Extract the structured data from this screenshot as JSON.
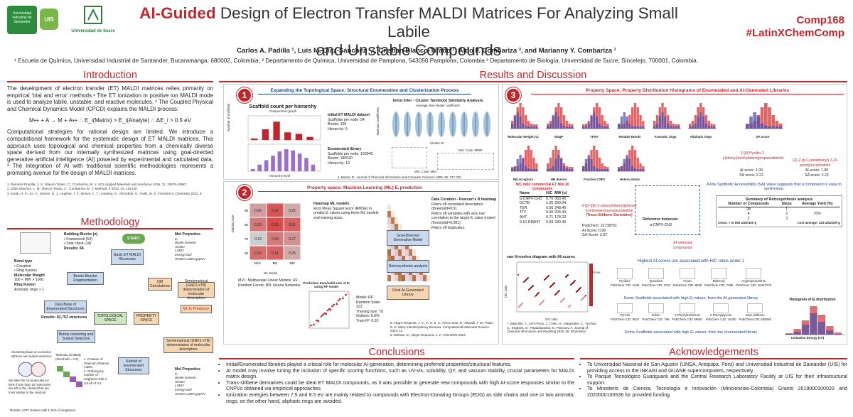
{
  "logos": {
    "uis_text": "Universidad Industrial de Santander",
    "uis_badge": "UIS",
    "sucre_text": "Universidad de Sucre"
  },
  "header": {
    "title_ai": "AI-Guided",
    "title_rest_line1": " Design of Electron Transfer MALDI Matrices For Analyzing Small Labile",
    "title_line2": "and Unstable Compounds",
    "comp_id": "Comp168",
    "hashtag": "#LatinXChemComp"
  },
  "authors": "Carlos A. Padilla ¹, Luis M. Díaz-Sánchez ¹,², Cristian Blanco-Tirado ¹, Aldo F. Combariza ³, and Marianny Y. Combariza ¹",
  "affiliations": "¹ Escuela de Química, Universidad Industrial de Santander, Bucaramanga, 680002, Colombia; ² Departamento de Química, Universidad de Pamplona, 543050 Pamplona, Colombia ³ Departamento de Biología, Universidad de Sucre, Sincelejo, 700001, Colombia.",
  "intro": {
    "heading": "Introduction",
    "p1": "The development of electron transfer (ET) MALDI matrices relies primarily on empirical ‘trial and error’ methods.¹ The ET ionization in positive ion MALDI mode is used to analyze labile, unstable, and reactive molecules. ² The Coupled Physical and Chemical Dynamics Model (CPCD) explains the MALDI process:",
    "equation": "M•+ + A → M + A•+ ∴ E_i(Matrix) > E_i(Analyte) ∴ ΔE_i > 0.5 eV",
    "p2": "Computational strategies for rational design are limited. We introduce a computational framework for the systematic design of ET MALDI matrices. This approach uses topological and chemical properties from a chemically diverse space derived from our internally synthesized matrices using goal-directed generative artificial intelligence (AI) powered by experimental and calculated data. ³ The integration of AI with traditional scientific methodologies represents a promising avenue for the design of MALDI matrices.",
    "refs": [
      "1. Ramírez-Pradilla, J. S.; Blanco-Tirado, C.; Combariza, M. Y. ACS Applied Materials and Interfaces 2019, 11, 10975-10987.",
      "2. Díaz-Sánchez, L. M.; Blanco-Tirado, C.; Combariza, M. Y. Methods X 2023, 10, 102140.",
      "3. Kwak, H. S.; An, Y.; Giesen, D. J.; Hughes, T. F.; Brown, C. T.; Leswing, K.; Abroshan, H.; Halls, M. D. Frontiers in Chemistry 2022, 9"
    ]
  },
  "methodology": {
    "heading": "Methodology",
    "start": "START",
    "building_blocks": "Building Blocks (n)",
    "framework": "• Framework (54)",
    "side_chain": "• Side chain (14)",
    "results_68": "Results: 68",
    "bond_type": "Bond type",
    "covalent": "• Covalent",
    "ring_fusions": "• Ring fusions",
    "mol_weight": "Molecular Weight",
    "mw_range": "100 < MW > 1000",
    "ring_fusion": "Ring Fusion",
    "aromatic": "Aromatic rings > 1",
    "basic_lib": "Basic ET MALDI Structures",
    "bemis": "Bemis-Murcko Fragmentation",
    "database": "Data Base of Enumerated Structures",
    "results_82": "Results: 82,753 structures",
    "butina": "Butina clustering and Subset Selection",
    "clustering_note": "Clustering base on exclusion spheres and subset selection",
    "taken_note": "We take the 10 molecules (or 50% if less than 10 molecules) are left in the cluster) that are most similar to the centroid",
    "tanimoto_note": "Tanimoto similarity (threshold = 0.2)",
    "step1": "1. Creation of Tanimoto distance matrix",
    "step2": "2. Ordering by number of neighbors with a cut-off of 0.2",
    "results_4787": "Results: 4787 clusters with 1.34% of singletons",
    "topological": "TOPOLOGICAL SPACE",
    "property": "PROPERTY SPACE",
    "subset": "Subset of Enumerated Structures",
    "qm": "QM Calculations",
    "semi1": "Semiempirical (GNF2-xTB) determination of molecular descriptors",
    "ml_pred": "ML Eᵢ Prediction",
    "semi2": "Semiempirical (GNF2-xTB) determination of molecular descriptors",
    "goal": "Goal-Directed Generative Model",
    "retro": "Retrosynthesis analysis",
    "final": "Final AI-Generated Library",
    "mol_props_title": "Mol Properties",
    "mol_props": [
      "Eᵢ",
      "Dipole moment",
      "HOMO",
      "LUMO",
      "Energy total",
      "HOMO-LUMO gap/eV"
    ],
    "mol_props2": [
      "Eᵢ",
      "Dipole moment",
      "HOMO",
      "LUMO",
      "Energy total",
      "HOMO-LUMO gap/eV"
    ]
  },
  "results": {
    "heading": "Results and Discussion",
    "panel1": {
      "num": "1",
      "title": "Expanding the Topological Space: Structural Enumeration and Clusterization Process",
      "scaffold_title": "Scaffold count per hierarchy",
      "scaffold_sub": "Comparative graph",
      "y_label": "Number of scaffolds",
      "x_label": "Hierarchy level",
      "lib_initial": "Initial ET MALDI dataset",
      "init_scaffolds": "Scaffolds per node: 54",
      "init_bonds": "Bonds: 106",
      "init_hier": "Hierarchy: 5",
      "lib_enum": "Enumerated library",
      "enum_scaffolds": "Scaffolds per node: 103940",
      "enum_bonds": "Bonds: 186520",
      "enum_hier": "Hierarchy: 10",
      "cluster_title": "Intra/ Inter - Cluster Tanimoto Similarity Analysis",
      "cluster_sub": "Average inter-cluster coefficient",
      "cluster_y": "Tanimoto Coefficient",
      "cluster_x": "Cluster ID",
      "code1": "Mol. Code: M590",
      "code2": "Mol. Code: M64",
      "ref": "4. Butina, D., Journal of Chemical Information and Computer Sciences 1999, 39, 747-750."
    },
    "panel2": {
      "num": "2",
      "title": "Property space: Machine Learning (ML) Eᵢ prediction",
      "heatmap_title": "Heatmap ML models",
      "heatmap_desc": "Root Mean Square Error (RMSE) to predict Eᵢ values using three ML models and training sizes.",
      "models": [
        "MVL",
        "RF",
        "NN"
      ],
      "models_label": "ML Model",
      "training": "Training Size",
      "legend_mvl": "MVL: Multivariate Linear Models; RF: Random Forest; NN: Neural Networks.",
      "curation_title": "Data Curation - Pearson's R heatmap",
      "cur1": "Filters off correlated descriptors (threshold=0.9).",
      "cur2": "Filters off variables with very low correlation to the target Eᵢ value (noise) (threshold=0.001).",
      "cur3": "Filters off duplicates.",
      "scatter_title": "Prediction train/valid sets of Eᵢ using RF model",
      "model_rf": "Model: RF",
      "seed": "Random State: 223",
      "train": "Training size: 70",
      "outliers": "Outliers: 0.0%",
      "r2": "Train R²: 0.92",
      "ref5": "5. Alegre-Requena, J. V.; V., S. S. S.; Pérez-Soto, R.; Alturaifi, T. M.; Paton, R. S. Wiley Interdisciplinary Reviews: Computational Molecular Science 2023, 13.",
      "ref6": "6. Dalmau, D.; Alegre-Requena, J. V.; ChemRxiv 2023"
    },
    "panel3": {
      "num": "3",
      "title": "Property Space: Property Distribution Histograms of Enumerated and AI-Generated Libraries",
      "hist_labels": [
        "Molecular Weight (u)",
        "SlogP",
        "TPSA",
        "Rotable Bonds",
        "Aromatic rings",
        "Aliphatic rings",
        "SA score",
        "HB acceptors",
        "HB donors",
        "Fraction CSP3",
        "Hetero atoms"
      ],
      "freq": "Frequency",
      "mol1": "2-[(4-Pyridin-2-ylphenyl)methylidene]propanedinitrile",
      "ai1": "AI-score: 1.00",
      "sa1": "SA score: 2.22",
      "mol2": "(Z)-2-(p-Cyanophenyl)-3-(3-pyridyl)acrylonitrile",
      "ai2": "AI-score: 1.00",
      "sa2": "SA score: 2.22",
      "hc_title": "H/C ratio commercial ET MALDI compounds",
      "hc_cols": [
        "Name",
        "H/C",
        "MW (u)"
      ],
      "hc_rows": [
        [
          "α-CNPV-CH3",
          "0.76",
          "360.45"
        ],
        [
          "DCTB",
          "1.05",
          "250.34"
        ],
        [
          "TER",
          "0.66",
          "248.40"
        ],
        [
          "TTF",
          "0.66",
          "204.40"
        ],
        [
          "ANT",
          "0.71",
          "178.23"
        ],
        [
          "9,10-DPANT",
          "0.69",
          "330.40"
        ]
      ],
      "tsd": "2-[[2-[(E)-2-phenylethenyl]phenyl](methylidene)propanedinitrile",
      "tsd_label": "(Trans-Stilbene Derivative)",
      "pubchem": "PubChem: 21738751",
      "ai_tsd": "AI-Score: 0.99",
      "sa_tsd": "SA-Score: 2.37",
      "ref_mol": "Reference molecule:",
      "ref_name": "α-CNPV-CH3",
      "selected": "34 selected compounds",
      "low_sa": "A low Synthetic Accessibility (SA) value suggests that a compound is easy to synthesize.",
      "retro_title": "Summary of Retrosynthesis analysis",
      "retro_cols": [
        "Number of Compounds",
        "Steps",
        "Average Yield (%)"
      ],
      "retro_rows": [
        [
          "28",
          "1",
          ""
        ],
        [
          "4",
          "2",
          "76%"
        ],
        [
          "2",
          "3",
          ""
        ]
      ],
      "costs": "Costs: 7 to 800 USD/100 g",
      "cost_avg": "Cost average: 133 USD/100 g",
      "vk_title": "van Krevelen diagram with AI-scores",
      "vk_y": "H/C ratio",
      "vk_x": "O/C ratio",
      "vk_score": "Score",
      "ref7": "7. Blaschke, T.; Arú's-Pous, J.; Chen, H.; Margreitter, C.; Tyrchan, C.; Engkvist, O.; Papadopoulos, K.; Patronov, A. Journal of Chemical Information and Modeling 2020, 60, 5918-5922.",
      "highest": "Highest AI-scores are associated with H/C ratios under 1",
      "ai_scaffolds": "Some Scaffolds associated with high Eᵢ values, from the AI-generated library",
      "ai_names": [
        "Pyridine",
        "Quinoline",
        "Furan",
        "Biphenyl",
        "Arylpropenenitrile"
      ],
      "ai_ids": [
        "PubChem CID: 1049",
        "PubChem CID: 7047",
        "PubChem CID: 8029",
        "PubChem CID: 7095",
        "PubChem CID: 10467275"
      ],
      "enum_scaffolds": "Some Scaffolds associated with high Eᵢ values, from the enumerated library",
      "enum_names": [
        "Pyrrole",
        "Indole",
        "2-Phenylimidazole",
        "2-Phenylpyrrole",
        "trans-Stilbene"
      ],
      "enum_ids": [
        "PubChem CID: 8027",
        "PubChem CID: 798",
        "PubChem CID: 69591",
        "PubChem CID: 12480",
        "PubChem CID: 638088"
      ],
      "ehist_title": "Histogram of Eᵢ distribution",
      "ehist_x": "Ionization Energy (eV)",
      "ehist_y": "Frequency",
      "legend_enum": "Enumerated library",
      "legend_ai": "AI-generated library"
    }
  },
  "conclusions": {
    "heading": "Conclusions",
    "items": [
      "Initial/Enumerated libraries played a critical role for molecular AI-generation, determining preferred properties/structural features.",
      "AI model may involve tuning the inclusion of specific scoring functions, such as UV-vis, solubility, QY, and vacuum stability, crucial parameters for MALDI matrix design.",
      "Trans-stilbene derivatives could be ideal ET MALDI compounds, as it was possible to generate new compounds with high AI-score responses similar to the CNPVs obtained via empirical approaches.",
      "Ionization energies between 7.5 and 8.5 eV are mainly related to compounds with Electron-Donating Groups (EDG) as side chains and one or two aromatic rings; on the other hand, aliphatic rings are avoided."
    ]
  },
  "ack": {
    "heading": "Acknowledgements",
    "items": [
      "To Universidad Nacional de San Agustín (UNSA, Arequipa, Perú) and Universidad Industrial de Santander (UIS) for providing access to the INKARI and GUANE supercomputers, respectively.",
      "To Parque Tecnológico Guatiguará and the Central Research Laboratory Facility at UIS for their infrastructural support.",
      "To Ministerio de Ciencia, Tecnología e Innovación (Minciencias-Colombia) Grants 2019000100020 and 2020000100536 for provided funding."
    ]
  },
  "colors": {
    "accent": "#c0272d",
    "navy": "#1a3e8c",
    "enum": "#d94b4b",
    "ai": "#5050b0"
  },
  "chart_data": [
    {
      "type": "bar",
      "title": "Scaffold count per hierarchy",
      "xlabel": "Hierarchy level",
      "ylabel": "Number of scaffolds",
      "categories": [
        "0",
        "1",
        "2",
        "3",
        "4",
        "5"
      ],
      "values": [
        1,
        7,
        12,
        5,
        4,
        2
      ],
      "ylim": [
        0,
        14
      ]
    },
    {
      "type": "bar",
      "title": "Enumerated library",
      "xlabel": "Hierarchy level",
      "ylabel": "Number of scaffolds",
      "categories": [
        "1",
        "2",
        "3",
        "4",
        "5",
        "6",
        "7",
        "8",
        "9",
        "10"
      ],
      "values": [
        2,
        6,
        10,
        14,
        18,
        20,
        19,
        16,
        12,
        6
      ],
      "ylim": [
        0,
        22
      ]
    },
    {
      "type": "heatmap",
      "title": "Heatmap ML models",
      "x": [
        "MVL",
        "RF",
        "NN"
      ],
      "y": [
        "90",
        "80",
        "70",
        "60"
      ],
      "values": [
        [
          0.26,
          0.32,
          0.25
        ],
        [
          0.29,
          0.33,
          0.31
        ],
        [
          0.22,
          0.29,
          0.27
        ],
        [
          0.3,
          0.31,
          0.25
        ]
      ]
    },
    {
      "type": "scatter",
      "title": "Prediction train/valid sets of Eᵢ using RF model",
      "xlabel": "Eᵢ (eV)",
      "ylabel": "Predicted Eᵢ (eV)",
      "x": [
        7.1,
        7.3,
        7.5,
        7.6,
        7.8,
        7.9,
        8.0,
        8.1,
        8.2,
        8.3,
        8.4,
        8.5,
        8.6,
        8.8,
        8.9,
        9.0,
        9.2,
        9.4
      ],
      "y": [
        7.2,
        7.25,
        7.55,
        7.5,
        7.85,
        7.95,
        8.05,
        8.0,
        8.25,
        8.35,
        8.3,
        8.55,
        8.65,
        8.7,
        8.95,
        9.05,
        9.1,
        9.35
      ]
    },
    {
      "type": "bar",
      "title": "Histogram of Eᵢ distribution",
      "xlabel": "Ionization Energy (eV)",
      "ylabel": "Frequency",
      "categories": [
        "6.5",
        "7.0",
        "7.5",
        "8.0",
        "8.5",
        "9.0",
        "9.5"
      ],
      "series": [
        {
          "name": "Enumerated library",
          "values": [
            2,
            8,
            20,
            40,
            28,
            12,
            3
          ]
        },
        {
          "name": "AI-generated library",
          "values": [
            1,
            4,
            14,
            30,
            18,
            6,
            1
          ]
        }
      ]
    }
  ]
}
